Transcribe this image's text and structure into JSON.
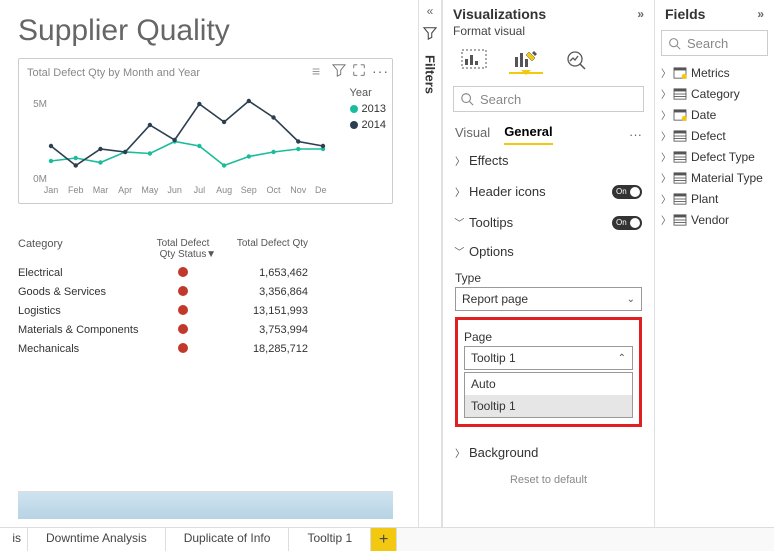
{
  "report": {
    "title": "Supplier Quality",
    "chart": {
      "type": "line",
      "title": "Total Defect Qty by Month and Year",
      "legend_title": "Year",
      "xlabels": [
        "Jan",
        "Feb",
        "Mar",
        "Apr",
        "May",
        "Jun",
        "Jul",
        "Aug",
        "Sep",
        "Oct",
        "Nov",
        "Dec"
      ],
      "ylabels": [
        "0M",
        "5M"
      ],
      "ylim": [
        0,
        6000000
      ],
      "series": [
        {
          "name": "2013",
          "color": "#1abc9c",
          "values": [
            1200000,
            1400000,
            1100000,
            1800000,
            1700000,
            2500000,
            2200000,
            900000,
            1500000,
            1800000,
            2000000,
            2000000
          ]
        },
        {
          "name": "2014",
          "color": "#2c3e50",
          "values": [
            2200000,
            900000,
            2000000,
            1800000,
            3600000,
            2600000,
            5000000,
            3800000,
            5200000,
            4100000,
            2500000,
            2200000
          ]
        }
      ],
      "background_color": "#ffffff",
      "axis_color": "#bbbbbb",
      "label_color": "#888888",
      "label_fontsize": 10
    },
    "table": {
      "columns": [
        "Category",
        "Total Defect Qty Status",
        "Total Defect Qty"
      ],
      "status_color": "#c0392b",
      "rows": [
        {
          "cat": "Electrical",
          "val": "1,653,462"
        },
        {
          "cat": "Goods & Services",
          "val": "3,356,864"
        },
        {
          "cat": "Logistics",
          "val": "13,151,993"
        },
        {
          "cat": "Materials & Components",
          "val": "3,753,994"
        },
        {
          "cat": "Mechanicals",
          "val": "18,285,712"
        }
      ]
    }
  },
  "tabs": {
    "items": [
      "is",
      "Downtime Analysis",
      "Duplicate of Info",
      "Tooltip 1"
    ],
    "add": "+"
  },
  "filters_label": "Filters",
  "viz": {
    "title": "Visualizations",
    "subtitle": "Format visual",
    "search_placeholder": "Search",
    "subtabs": {
      "visual": "Visual",
      "general": "General"
    },
    "sections": {
      "effects": "Effects",
      "header": "Header icons",
      "tooltips": "Tooltips",
      "options": "Options",
      "background": "Background"
    },
    "toggle_on": "On",
    "type_label": "Type",
    "type_value": "Report page",
    "page_label": "Page",
    "page_value": "Tooltip 1",
    "dd_items": [
      "Auto",
      "Tooltip 1"
    ],
    "reset": "Reset to default"
  },
  "fields": {
    "title": "Fields",
    "search_placeholder": "Search",
    "items": [
      {
        "name": "Metrics",
        "variant": "measure"
      },
      {
        "name": "Category",
        "variant": "table"
      },
      {
        "name": "Date",
        "variant": "date"
      },
      {
        "name": "Defect",
        "variant": "table"
      },
      {
        "name": "Defect Type",
        "variant": "table"
      },
      {
        "name": "Material Type",
        "variant": "table"
      },
      {
        "name": "Plant",
        "variant": "table"
      },
      {
        "name": "Vendor",
        "variant": "table"
      }
    ]
  },
  "colors": {
    "accent": "#f2c811",
    "highlight": "#e02020"
  }
}
